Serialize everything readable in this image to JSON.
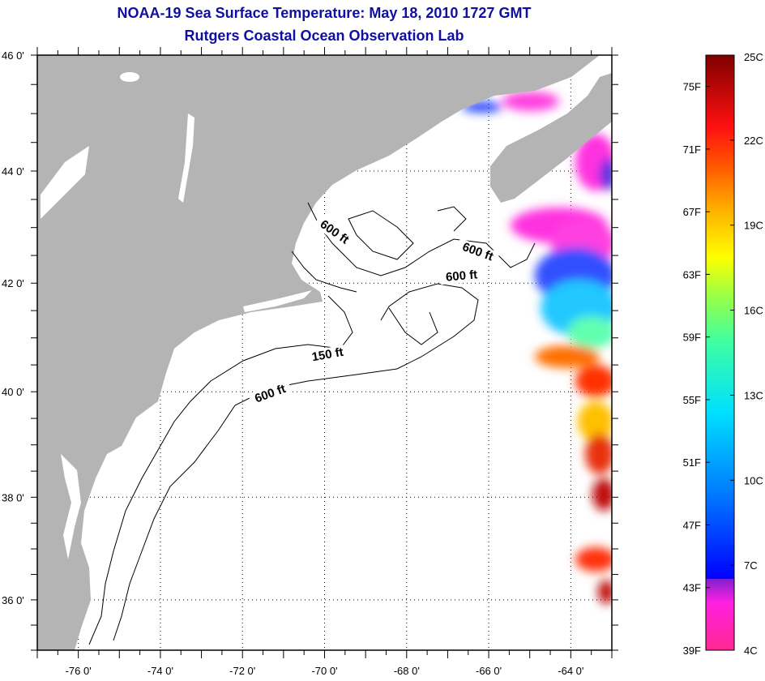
{
  "title": "NOAA-19 Sea Surface Temperature:  May 18, 2010 1727 GMT",
  "subtitle": "Rutgers Coastal Ocean Observation Lab",
  "map": {
    "lon_range": [
      -77,
      -63
    ],
    "lat_range": [
      35,
      46
    ],
    "lon_labels": [
      {
        "lon": -76,
        "label": "-76 0'"
      },
      {
        "lon": -74,
        "label": "-74 0'"
      },
      {
        "lon": -72,
        "label": "-72 0'"
      },
      {
        "lon": -70,
        "label": "-70 0'"
      },
      {
        "lon": -68,
        "label": "-68 0'"
      },
      {
        "lon": -66,
        "label": "-66 0'"
      },
      {
        "lon": -64,
        "label": "-64 0'"
      }
    ],
    "lat_labels": [
      {
        "lat": 46,
        "label": "46 0'"
      },
      {
        "lat": 44,
        "label": "44 0'"
      },
      {
        "lat": 42,
        "label": "42 0'"
      },
      {
        "lat": 40,
        "label": "40 0'"
      },
      {
        "lat": 38,
        "label": "38 0'"
      },
      {
        "lat": 36,
        "label": "36 0'"
      }
    ],
    "contour_labels": [
      "600 ft",
      "600 ft",
      "600 ft",
      "150 ft",
      "600 ft"
    ],
    "land_color": "#b4b4b4"
  },
  "colorbar": {
    "fahrenheit_labels": [
      "75F",
      "71F",
      "67F",
      "63F",
      "59F",
      "55F",
      "51F",
      "47F",
      "43F",
      "39F"
    ],
    "celsius_labels": [
      "25C",
      "22C",
      "19C",
      "16C",
      "13C",
      "10C",
      "7C",
      "4C"
    ],
    "range_c": [
      4,
      25
    ],
    "range_f": [
      39,
      77
    ]
  }
}
